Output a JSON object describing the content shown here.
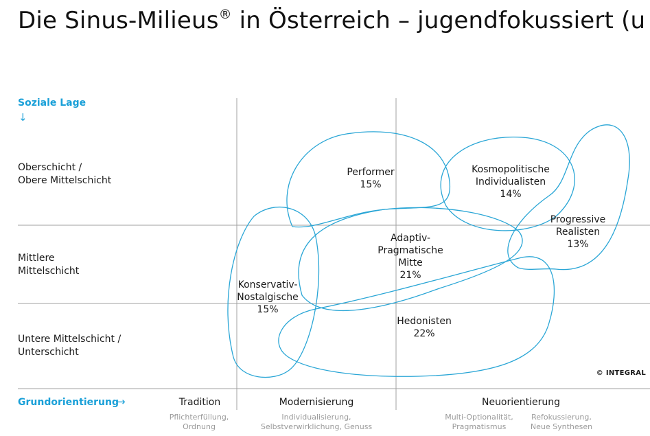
{
  "title": {
    "main": "Die Sinus-Milieus",
    "reg": "®",
    "rest": " in Österreich – jugendfokussiert (u"
  },
  "y_axis": {
    "label": "Soziale Lage",
    "arrow": "↓"
  },
  "rows": [
    {
      "label": "Oberschicht /\nObere Mittelschicht"
    },
    {
      "label": "Mittlere\nMittelschicht"
    },
    {
      "label": "Untere Mittelschicht /\nUnterschicht"
    }
  ],
  "x_axis": {
    "label": "Grundorientierung",
    "arrow": "→"
  },
  "columns": [
    {
      "name": "Tradition",
      "subs": [
        "Pflichterfüllung,\nOrdnung"
      ]
    },
    {
      "name": "Modernisierung",
      "subs": [
        "Individualisierung,\nSelbstverwirklichung, Genuss"
      ]
    },
    {
      "name": "Neuorientierung",
      "subs": [
        "Multi-Optionalität,\nPragmatismus",
        "Refokussierung,\nNeue Synthesen"
      ]
    }
  ],
  "milieus": [
    {
      "name": "Performer",
      "share": "15%"
    },
    {
      "name": "Kosmopolitische\nIndividualisten",
      "share": "14%"
    },
    {
      "name": "Progressive\nRealisten",
      "share": "13%"
    },
    {
      "name": "Adaptiv-\nPragmatische\nMitte",
      "share": "21%"
    },
    {
      "name": "Konservativ-\nNostalgische",
      "share": "15%"
    },
    {
      "name": "Hedonisten",
      "share": "22%"
    }
  ],
  "copyright": "© INTEGRAL",
  "colors": {
    "accent": "#1aa0d8",
    "grid": "#a0a0a0",
    "outline": "#2aa6d6"
  }
}
